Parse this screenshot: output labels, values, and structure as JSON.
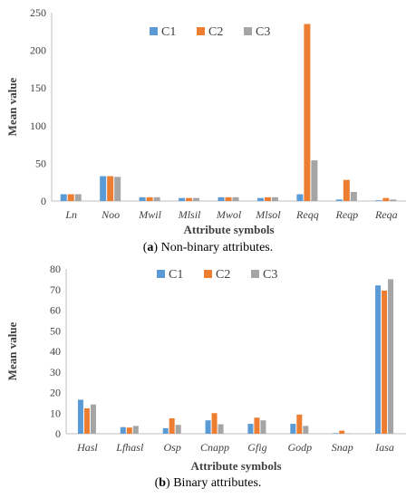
{
  "series_colors": [
    "#5b9bd5",
    "#ed7d31",
    "#a5a5a5"
  ],
  "chart_data": [
    {
      "type": "bar",
      "panel": "a",
      "xlabel": "Attribute symbols",
      "ylabel": "Mean value",
      "ylim": [
        0,
        250
      ],
      "yticks": [
        0,
        50,
        100,
        150,
        200,
        250
      ],
      "grid": false,
      "legend": "top-center",
      "categories": [
        "Ln",
        "Noo",
        "Mwil",
        "Mlsil",
        "Mwol",
        "Mlsol",
        "Reqq",
        "Reqp",
        "Reqa"
      ],
      "series": [
        {
          "name": "C1",
          "values": [
            9,
            33,
            5,
            4,
            5,
            4,
            9,
            2,
            1
          ]
        },
        {
          "name": "C2",
          "values": [
            9,
            33,
            5,
            4,
            5,
            5,
            235,
            28,
            4
          ]
        },
        {
          "name": "C3",
          "values": [
            9,
            32,
            5,
            4,
            5,
            5,
            54,
            12,
            2
          ]
        }
      ],
      "caption_label": "a",
      "caption_text": " Non-binary attributes."
    },
    {
      "type": "bar",
      "panel": "b",
      "xlabel": "Attribute symbols",
      "ylabel": "Mean value",
      "ylim": [
        0,
        80
      ],
      "yticks": [
        0,
        10,
        20,
        30,
        40,
        50,
        60,
        70,
        80
      ],
      "grid": false,
      "legend": "top-center",
      "categories": [
        "Hasl",
        "Lfhasl",
        "Osp",
        "Cnapp",
        "Gfig",
        "Godp",
        "Snap",
        "Iasa"
      ],
      "series": [
        {
          "name": "C1",
          "values": [
            16.5,
            3.2,
            2.7,
            6.5,
            4.8,
            4.8,
            0.3,
            72
          ]
        },
        {
          "name": "C2",
          "values": [
            12.3,
            3.0,
            7.5,
            10.0,
            7.8,
            9.3,
            1.5,
            69.5
          ]
        },
        {
          "name": "C3",
          "values": [
            14.2,
            3.8,
            4.3,
            4.6,
            6.5,
            3.8,
            0.2,
            75
          ]
        }
      ],
      "caption_label": "b",
      "caption_text": " Binary attributes."
    }
  ]
}
